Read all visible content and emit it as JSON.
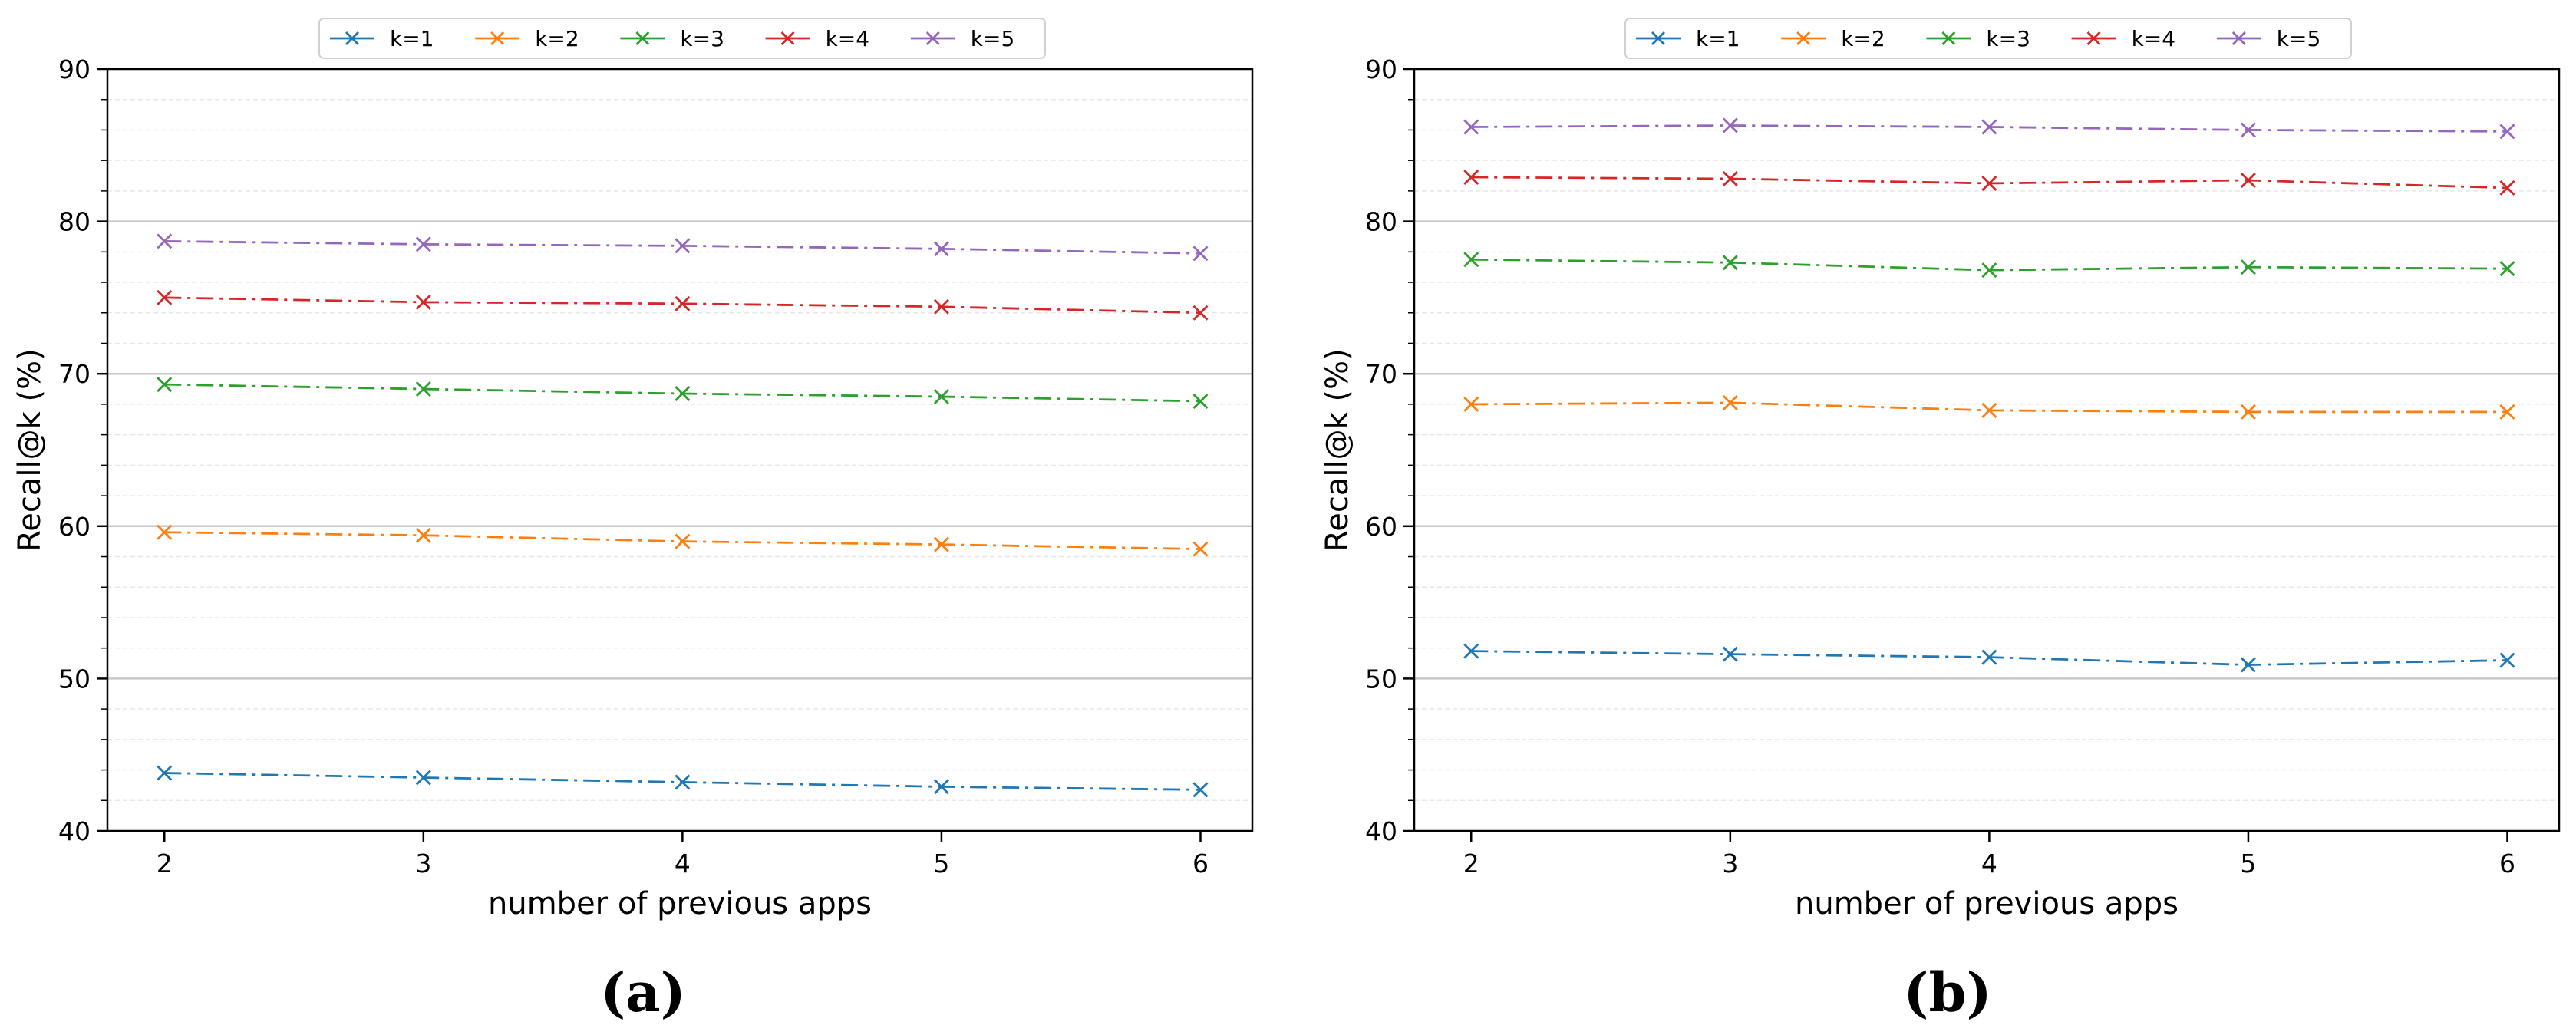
{
  "colors": {
    "k=1": "#1f77b4",
    "k=2": "#ff7f0e",
    "k=3": "#2ca02c",
    "k=4": "#d62728",
    "k=5": "#9467bd"
  },
  "chart_data": [
    {
      "type": "line",
      "panel_label": "(a)",
      "title": "",
      "xlabel": "number of previous apps",
      "ylabel": "Recall@k (%)",
      "x": [
        2,
        3,
        4,
        5,
        6
      ],
      "x_tick_labels": [
        "2",
        "3",
        "4",
        "5",
        "6"
      ],
      "xlim": [
        1.78,
        6.2
      ],
      "ylim": [
        40,
        90
      ],
      "y_ticks": [
        40,
        50,
        60,
        70,
        80,
        90
      ],
      "y_tick_labels": [
        "40",
        "50",
        "60",
        "70",
        "80",
        "90"
      ],
      "grid": true,
      "legend_position": "top-center",
      "series": [
        {
          "name": "k=1",
          "values": [
            43.8,
            43.5,
            43.2,
            42.9,
            42.7
          ]
        },
        {
          "name": "k=2",
          "values": [
            59.6,
            59.4,
            59.0,
            58.8,
            58.5
          ]
        },
        {
          "name": "k=3",
          "values": [
            69.3,
            69.0,
            68.7,
            68.5,
            68.2
          ]
        },
        {
          "name": "k=4",
          "values": [
            75.0,
            74.7,
            74.6,
            74.4,
            74.0
          ]
        },
        {
          "name": "k=5",
          "values": [
            78.7,
            78.5,
            78.4,
            78.2,
            77.9
          ]
        }
      ]
    },
    {
      "type": "line",
      "panel_label": "(b)",
      "title": "",
      "xlabel": "number of previous apps",
      "ylabel": "Recall@k (%)",
      "x": [
        2,
        3,
        4,
        5,
        6
      ],
      "x_tick_labels": [
        "2",
        "3",
        "4",
        "5",
        "6"
      ],
      "xlim": [
        1.78,
        6.2
      ],
      "ylim": [
        40,
        90
      ],
      "y_ticks": [
        40,
        50,
        60,
        70,
        80,
        90
      ],
      "y_tick_labels": [
        "40",
        "50",
        "60",
        "70",
        "80",
        "90"
      ],
      "grid": true,
      "legend_position": "top-center",
      "series": [
        {
          "name": "k=1",
          "values": [
            51.8,
            51.6,
            51.4,
            50.9,
            51.2
          ]
        },
        {
          "name": "k=2",
          "values": [
            68.0,
            68.1,
            67.6,
            67.5,
            67.5
          ]
        },
        {
          "name": "k=3",
          "values": [
            77.5,
            77.3,
            76.8,
            77.0,
            76.9
          ]
        },
        {
          "name": "k=4",
          "values": [
            82.9,
            82.8,
            82.5,
            82.7,
            82.2
          ]
        },
        {
          "name": "k=5",
          "values": [
            86.2,
            86.3,
            86.2,
            86.0,
            85.9
          ]
        }
      ]
    }
  ]
}
